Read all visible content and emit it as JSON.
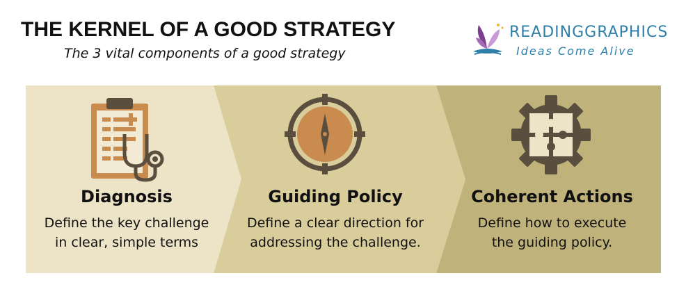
{
  "header": {
    "title": "THE KERNEL OF A GOOD STRATEGY",
    "subtitle": "The 3 vital components of a good strategy"
  },
  "logo": {
    "name": "READINGGRAPHICS",
    "tagline": "Ideas Come Alive",
    "color": "#2f7fa9"
  },
  "colors": {
    "panel_1": "#ede3c6",
    "panel_2": "#d9cd9c",
    "panel_3": "#bfb27a",
    "icon_dark": "#5a4f3f",
    "icon_accent": "#c98b4e"
  },
  "panels": [
    {
      "icon": "clipboard-stethoscope-icon",
      "heading": "Diagnosis",
      "desc_line1": "Define the key challenge",
      "desc_line2": "in clear, simple terms"
    },
    {
      "icon": "compass-icon",
      "heading": "Guiding Policy",
      "desc_line1": "Define a clear direction for",
      "desc_line2": "addressing the challenge."
    },
    {
      "icon": "puzzle-gear-icon",
      "heading": "Coherent Actions",
      "desc_line1": "Define how to execute",
      "desc_line2": "the guiding policy."
    }
  ]
}
